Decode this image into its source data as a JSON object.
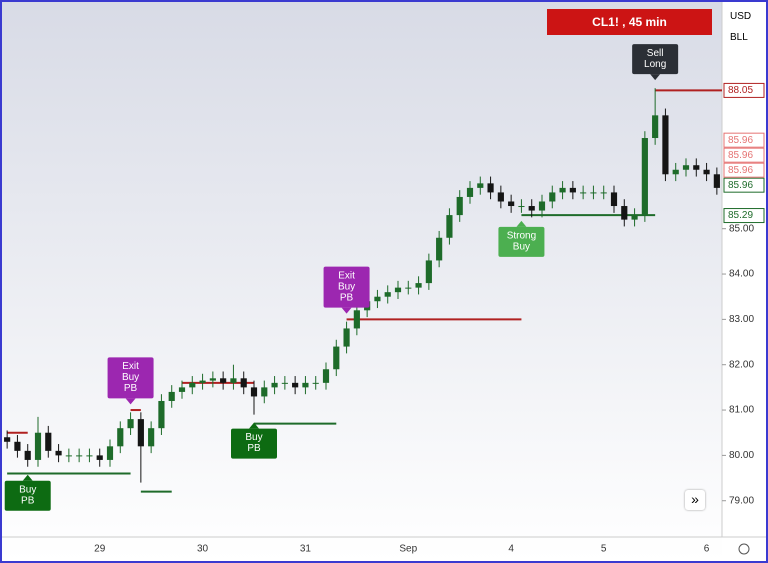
{
  "ui": {
    "symbol": "CL1! , 45 min",
    "currency": "USD",
    "unit": "BLL",
    "scroll": "»"
  },
  "chart_data": {
    "type": "candlestick",
    "categories": [
      null,
      null,
      null,
      null,
      null,
      null,
      null,
      null,
      null,
      "29",
      null,
      null,
      null,
      null,
      null,
      null,
      null,
      null,
      null,
      "30",
      null,
      null,
      null,
      null,
      null,
      null,
      null,
      null,
      null,
      "31",
      null,
      null,
      null,
      null,
      null,
      null,
      null,
      null,
      null,
      "Sep",
      null,
      null,
      null,
      null,
      null,
      null,
      null,
      null,
      null,
      "4",
      null,
      null,
      null,
      null,
      null,
      null,
      null,
      null,
      "5",
      null,
      null,
      null,
      null,
      null,
      null,
      null,
      null,
      null,
      "6",
      null
    ],
    "open": [
      80.4,
      80.3,
      80.1,
      79.9,
      80.5,
      80.1,
      80.0,
      80.0,
      80.0,
      80.0,
      79.9,
      80.2,
      80.6,
      80.8,
      80.2,
      80.6,
      81.2,
      81.4,
      81.5,
      81.6,
      81.65,
      81.7,
      81.6,
      81.7,
      81.5,
      81.3,
      81.5,
      81.6,
      81.6,
      81.5,
      81.6,
      81.6,
      81.9,
      82.4,
      82.8,
      83.2,
      83.4,
      83.5,
      83.6,
      83.7,
      83.7,
      83.8,
      84.3,
      84.8,
      85.3,
      85.7,
      85.9,
      86.0,
      85.8,
      85.6,
      85.5,
      85.5,
      85.4,
      85.6,
      85.8,
      85.9,
      85.8,
      85.8,
      85.8,
      85.8,
      85.5,
      85.2,
      85.3,
      87.0,
      87.5,
      86.2,
      86.3,
      86.4,
      86.3,
      86.2
    ],
    "high": [
      80.55,
      80.45,
      80.25,
      80.85,
      80.65,
      80.25,
      80.15,
      80.15,
      80.15,
      80.15,
      80.35,
      80.75,
      80.95,
      80.95,
      80.75,
      81.35,
      81.55,
      81.65,
      81.75,
      81.8,
      81.85,
      81.85,
      82.0,
      81.85,
      81.65,
      81.65,
      81.75,
      81.75,
      81.75,
      81.75,
      81.75,
      82.05,
      82.55,
      82.95,
      83.35,
      83.55,
      83.65,
      83.75,
      83.85,
      83.85,
      83.95,
      84.45,
      84.95,
      85.45,
      85.85,
      86.05,
      86.15,
      86.15,
      85.95,
      85.75,
      85.65,
      85.65,
      85.75,
      85.95,
      86.05,
      86.05,
      85.95,
      85.95,
      85.95,
      85.95,
      85.65,
      85.45,
      87.15,
      88.1,
      87.65,
      86.45,
      86.55,
      86.55,
      86.45,
      86.35
    ],
    "low": [
      80.15,
      79.95,
      79.75,
      79.75,
      79.95,
      79.85,
      79.85,
      79.85,
      79.85,
      79.75,
      79.75,
      80.05,
      80.45,
      79.4,
      80.05,
      80.45,
      81.05,
      81.25,
      81.35,
      81.45,
      81.5,
      81.45,
      81.45,
      81.35,
      80.9,
      81.15,
      81.35,
      81.45,
      81.35,
      81.35,
      81.45,
      81.45,
      81.75,
      82.25,
      82.65,
      83.05,
      83.25,
      83.35,
      83.45,
      83.55,
      83.55,
      83.65,
      84.15,
      84.65,
      85.15,
      85.55,
      85.75,
      85.65,
      85.45,
      85.35,
      85.35,
      85.25,
      85.25,
      85.45,
      85.65,
      85.65,
      85.65,
      85.65,
      85.65,
      85.35,
      85.05,
      85.05,
      85.15,
      86.85,
      86.05,
      86.05,
      86.15,
      86.15,
      86.05,
      85.75
    ],
    "close": [
      80.3,
      80.1,
      79.9,
      80.5,
      80.1,
      80.0,
      80.0,
      80.0,
      80.0,
      79.9,
      80.2,
      80.6,
      80.8,
      80.2,
      80.6,
      81.2,
      81.4,
      81.5,
      81.6,
      81.65,
      81.7,
      81.6,
      81.7,
      81.5,
      81.3,
      81.5,
      81.6,
      81.6,
      81.5,
      81.6,
      81.6,
      81.9,
      82.4,
      82.8,
      83.2,
      83.4,
      83.5,
      83.6,
      83.7,
      83.7,
      83.8,
      84.3,
      84.8,
      85.3,
      85.7,
      85.9,
      86.0,
      85.8,
      85.6,
      85.5,
      85.5,
      85.4,
      85.6,
      85.8,
      85.9,
      85.8,
      85.8,
      85.8,
      85.8,
      85.5,
      85.2,
      85.3,
      87.0,
      87.5,
      86.2,
      86.3,
      86.4,
      86.3,
      86.2,
      85.9
    ],
    "up_color": "#1e6b2a",
    "down_color": "#151515",
    "ylim": [
      78.2,
      90.0
    ],
    "yticks": [
      {
        "value": 79,
        "label": "79.00"
      },
      {
        "value": 80,
        "label": "80.00"
      },
      {
        "value": 81,
        "label": "81.00"
      },
      {
        "value": 82,
        "label": "82.00"
      },
      {
        "value": 83,
        "label": "83.00"
      },
      {
        "value": 84,
        "label": "84.00"
      },
      {
        "value": 85,
        "label": "85.00"
      }
    ],
    "levels": [
      {
        "price": 80.5,
        "from": 0,
        "to": 2,
        "color": "#b02020"
      },
      {
        "price": 79.6,
        "from": 0,
        "to": 12,
        "color": "#1e6b2a"
      },
      {
        "price": 81.0,
        "from": 12,
        "to": 13,
        "color": "#b02020"
      },
      {
        "price": 79.2,
        "from": 13,
        "to": 16,
        "color": "#1e6b2a"
      },
      {
        "price": 81.6,
        "from": 17,
        "to": 24,
        "color": "#b02020"
      },
      {
        "price": 80.7,
        "from": 24,
        "to": 32,
        "color": "#1e6b2a"
      },
      {
        "price": 83.0,
        "from": 33,
        "to": 50,
        "color": "#b02020"
      },
      {
        "price": 85.3,
        "from": 50,
        "to": 63,
        "color": "#1e6b2a"
      },
      {
        "price": 88.05,
        "from": 63,
        "to": 70,
        "color": "#b02020"
      }
    ],
    "signals": [
      {
        "text": [
          "Buy",
          "PB"
        ],
        "at": 2,
        "side": "below",
        "color": "#0d6b12"
      },
      {
        "text": [
          "Exit",
          "Buy",
          "PB"
        ],
        "at": 12,
        "side": "above",
        "color": "#9c27b0"
      },
      {
        "text": [
          "Buy",
          "PB"
        ],
        "at": 24,
        "side": "below",
        "color": "#0d6b12"
      },
      {
        "text": [
          "Exit",
          "Buy",
          "PB"
        ],
        "at": 33,
        "side": "above",
        "color": "#9c27b0"
      },
      {
        "text": [
          "Strong",
          "Buy"
        ],
        "at": 50,
        "side": "below",
        "color": "#4caf50"
      },
      {
        "text": [
          "Sell",
          "Long"
        ],
        "at": 63,
        "side": "above",
        "color": "#2b2f36"
      }
    ],
    "price_tags": [
      {
        "value": 88.05,
        "label": "88.05",
        "color": "#b02020"
      },
      {
        "value": 85.96,
        "label": "85.96",
        "color": "#e57373"
      },
      {
        "value": 85.96,
        "label": "85.96",
        "color": "#e57373"
      },
      {
        "value": 85.96,
        "label": "85.96",
        "color": "#e57373"
      },
      {
        "value": 85.96,
        "label": "85.96",
        "color": "#1e6b2a"
      },
      {
        "value": 85.29,
        "label": "85.29",
        "color": "#1e6b2a"
      }
    ]
  }
}
